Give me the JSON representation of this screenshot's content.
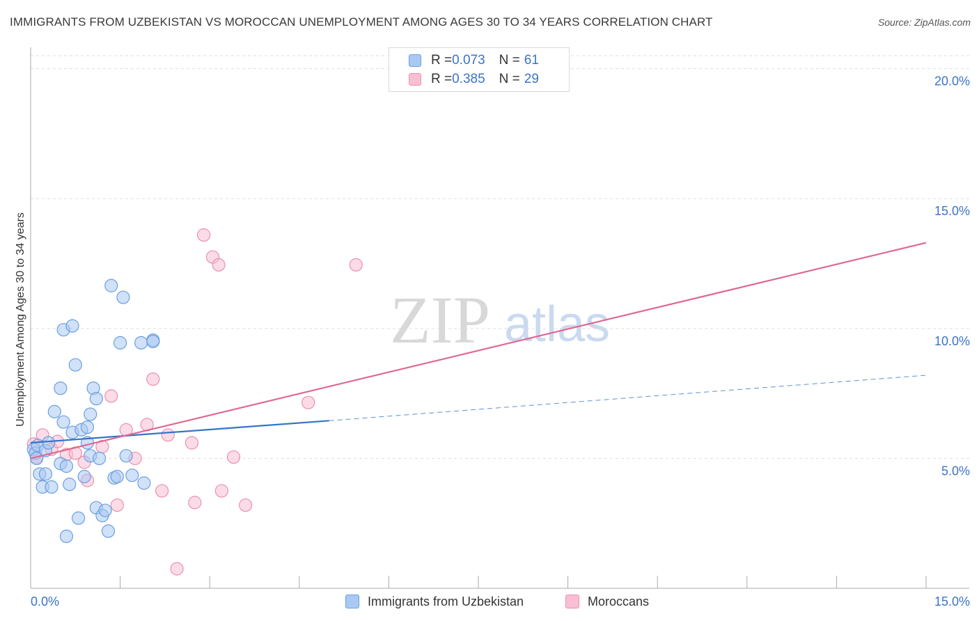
{
  "title": "IMMIGRANTS FROM UZBEKISTAN VS MOROCCAN UNEMPLOYMENT AMONG AGES 30 TO 34 YEARS CORRELATION CHART",
  "source": "Source: ZipAtlas.com",
  "watermark": {
    "zip": "ZIP",
    "atlas": "atlas"
  },
  "colors": {
    "blue_fill": "#a9c9f2",
    "blue_stroke": "#6a9fe0",
    "blue_line": "#3474c8",
    "pink_fill": "#f8bfd2",
    "pink_stroke": "#ec8fae",
    "pink_line": "#e06893",
    "tick_label": "#3b73c8",
    "grid": "#dddddd"
  },
  "legend": {
    "rows": [
      {
        "r_label": "R = ",
        "r_value": "0.073",
        "n_label": "N = ",
        "n_value": "61",
        "color": "blue"
      },
      {
        "r_label": "R = ",
        "r_value": "0.385",
        "n_label": "N = ",
        "n_value": "29",
        "color": "pink"
      }
    ]
  },
  "chart_data": {
    "type": "scatter",
    "title": "IMMIGRANTS FROM UZBEKISTAN VS MOROCCAN UNEMPLOYMENT AMONG AGES 30 TO 34 YEARS CORRELATION CHART",
    "xlabel": "",
    "ylabel": "Unemployment Among Ages 30 to 34 years",
    "xlim": [
      0,
      15
    ],
    "ylim": [
      0,
      20.5
    ],
    "x_tick_labels": [
      "0.0%",
      "15.0%"
    ],
    "y_ticks": [
      5,
      10,
      15,
      20
    ],
    "y_tick_labels": [
      "5.0%",
      "10.0%",
      "15.0%",
      "20.0%"
    ],
    "grid": true,
    "legend_position": "top-center",
    "series": [
      {
        "name": "Immigrants from Uzbekistan",
        "color": "blue",
        "R": 0.073,
        "N": 61,
        "trend": {
          "x0": 0,
          "y0": 5.6,
          "x1": 5.0,
          "y1": 6.45,
          "dashed_to_x": 15,
          "dashed_to_y": 8.2
        },
        "points": [
          [
            0.05,
            5.35
          ],
          [
            0.08,
            5.2
          ],
          [
            0.1,
            5.0
          ],
          [
            0.12,
            5.5
          ],
          [
            0.15,
            4.4
          ],
          [
            0.2,
            3.9
          ],
          [
            0.25,
            5.3
          ],
          [
            0.25,
            4.4
          ],
          [
            0.3,
            5.6
          ],
          [
            0.35,
            3.9
          ],
          [
            0.4,
            6.8
          ],
          [
            0.5,
            4.8
          ],
          [
            0.5,
            7.7
          ],
          [
            0.55,
            6.4
          ],
          [
            0.55,
            9.95
          ],
          [
            0.6,
            4.7
          ],
          [
            0.6,
            2.0
          ],
          [
            0.65,
            4.0
          ],
          [
            0.7,
            10.1
          ],
          [
            0.7,
            6.0
          ],
          [
            0.75,
            8.6
          ],
          [
            0.8,
            2.7
          ],
          [
            0.85,
            6.1
          ],
          [
            0.9,
            4.3
          ],
          [
            0.95,
            6.2
          ],
          [
            0.95,
            5.6
          ],
          [
            1.0,
            5.1
          ],
          [
            1.0,
            6.7
          ],
          [
            1.05,
            7.7
          ],
          [
            1.1,
            7.3
          ],
          [
            1.1,
            3.1
          ],
          [
            1.15,
            5.0
          ],
          [
            1.2,
            2.8
          ],
          [
            1.25,
            3.0
          ],
          [
            1.3,
            2.2
          ],
          [
            1.35,
            11.65
          ],
          [
            1.4,
            4.25
          ],
          [
            1.45,
            4.3
          ],
          [
            1.5,
            9.45
          ],
          [
            1.55,
            11.2
          ],
          [
            1.6,
            5.1
          ],
          [
            1.7,
            4.35
          ],
          [
            1.85,
            9.45
          ],
          [
            1.9,
            4.05
          ],
          [
            2.05,
            9.55
          ],
          [
            2.05,
            9.5
          ],
          [
            2.05,
            9.5
          ],
          [
            2.05,
            9.5
          ],
          [
            2.05,
            9.55
          ],
          [
            2.05,
            9.5
          ],
          [
            2.05,
            9.55
          ],
          [
            2.05,
            9.5
          ],
          [
            2.05,
            9.5
          ],
          [
            2.05,
            9.5
          ],
          [
            2.05,
            9.5
          ],
          [
            2.05,
            9.5
          ],
          [
            2.05,
            9.5
          ],
          [
            2.05,
            9.5
          ],
          [
            2.05,
            9.5
          ],
          [
            2.05,
            9.5
          ],
          [
            2.05,
            9.5
          ]
        ]
      },
      {
        "name": "Moroccans",
        "color": "pink",
        "R": 0.385,
        "N": 29,
        "trend": {
          "x0": 0,
          "y0": 5.0,
          "x1": 15,
          "y1": 13.3
        },
        "points": [
          [
            0.05,
            5.55
          ],
          [
            0.1,
            5.05
          ],
          [
            0.2,
            5.9
          ],
          [
            0.35,
            5.35
          ],
          [
            0.45,
            5.65
          ],
          [
            0.6,
            5.15
          ],
          [
            0.75,
            5.2
          ],
          [
            0.9,
            4.85
          ],
          [
            0.95,
            4.15
          ],
          [
            1.2,
            5.45
          ],
          [
            1.35,
            7.4
          ],
          [
            1.45,
            3.2
          ],
          [
            1.6,
            6.1
          ],
          [
            1.75,
            5.0
          ],
          [
            1.95,
            6.3
          ],
          [
            2.05,
            8.05
          ],
          [
            2.2,
            3.75
          ],
          [
            2.3,
            5.9
          ],
          [
            2.45,
            0.75
          ],
          [
            2.7,
            5.6
          ],
          [
            2.75,
            3.3
          ],
          [
            2.9,
            13.6
          ],
          [
            3.05,
            12.75
          ],
          [
            3.15,
            12.45
          ],
          [
            3.2,
            3.75
          ],
          [
            3.4,
            5.05
          ],
          [
            3.6,
            3.2
          ],
          [
            4.65,
            7.15
          ],
          [
            5.45,
            12.45
          ]
        ]
      }
    ]
  },
  "bottom_legend": {
    "series1": "Immigrants from Uzbekistan",
    "series2": "Moroccans"
  }
}
